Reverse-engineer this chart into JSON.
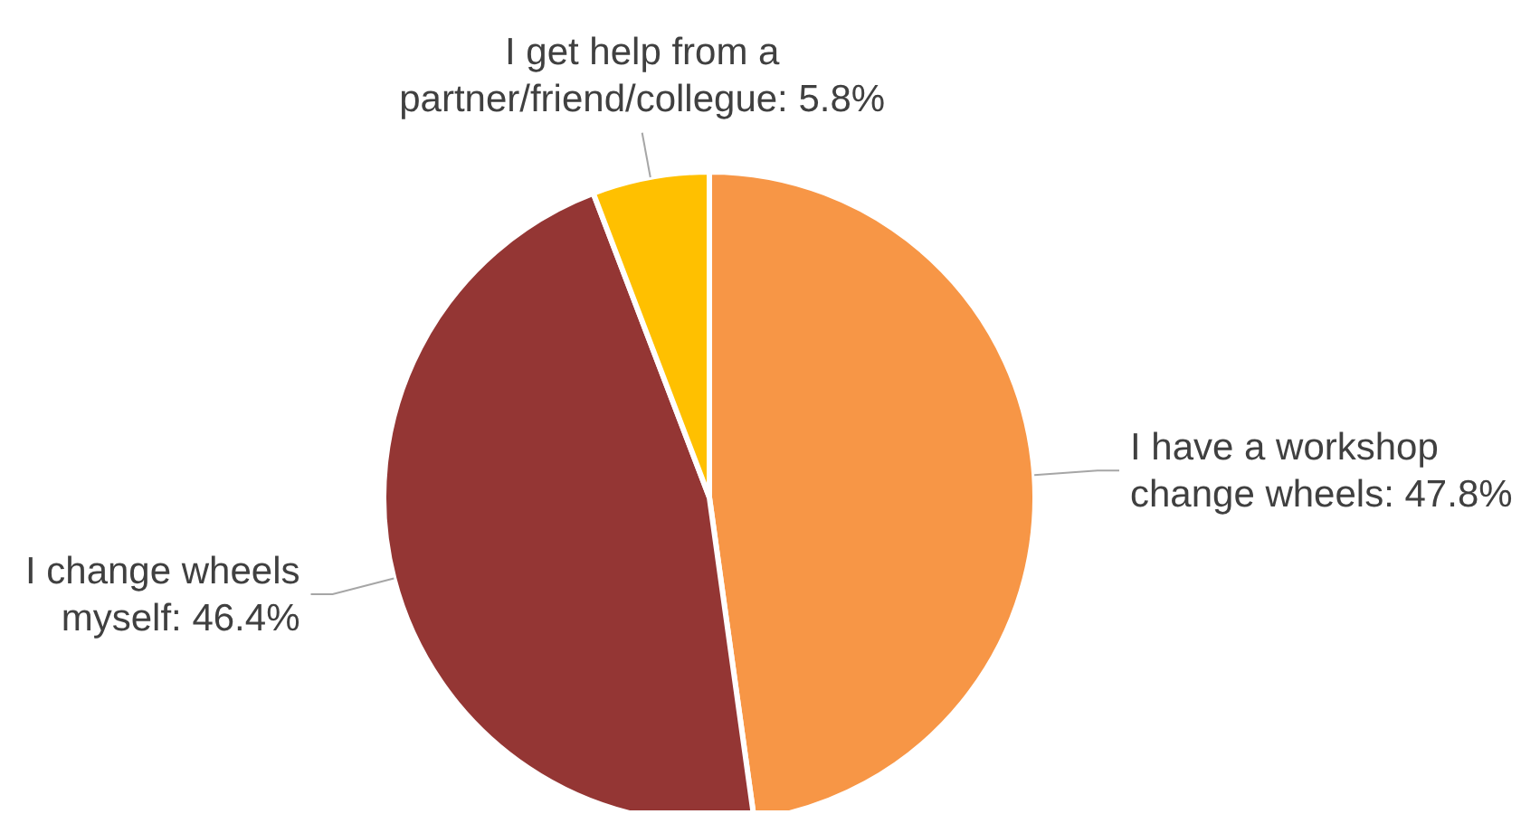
{
  "chart_data": {
    "type": "pie",
    "categories": [
      "I have a workshop change wheels",
      "I change wheels myself",
      "I get help from a partner/friend/collegue"
    ],
    "values": [
      47.8,
      46.4,
      5.8
    ],
    "value_labels": [
      "47.8%",
      "46.4%",
      "5.8%"
    ],
    "colors": [
      "#f79646",
      "#943634",
      "#ffc000"
    ]
  }
}
